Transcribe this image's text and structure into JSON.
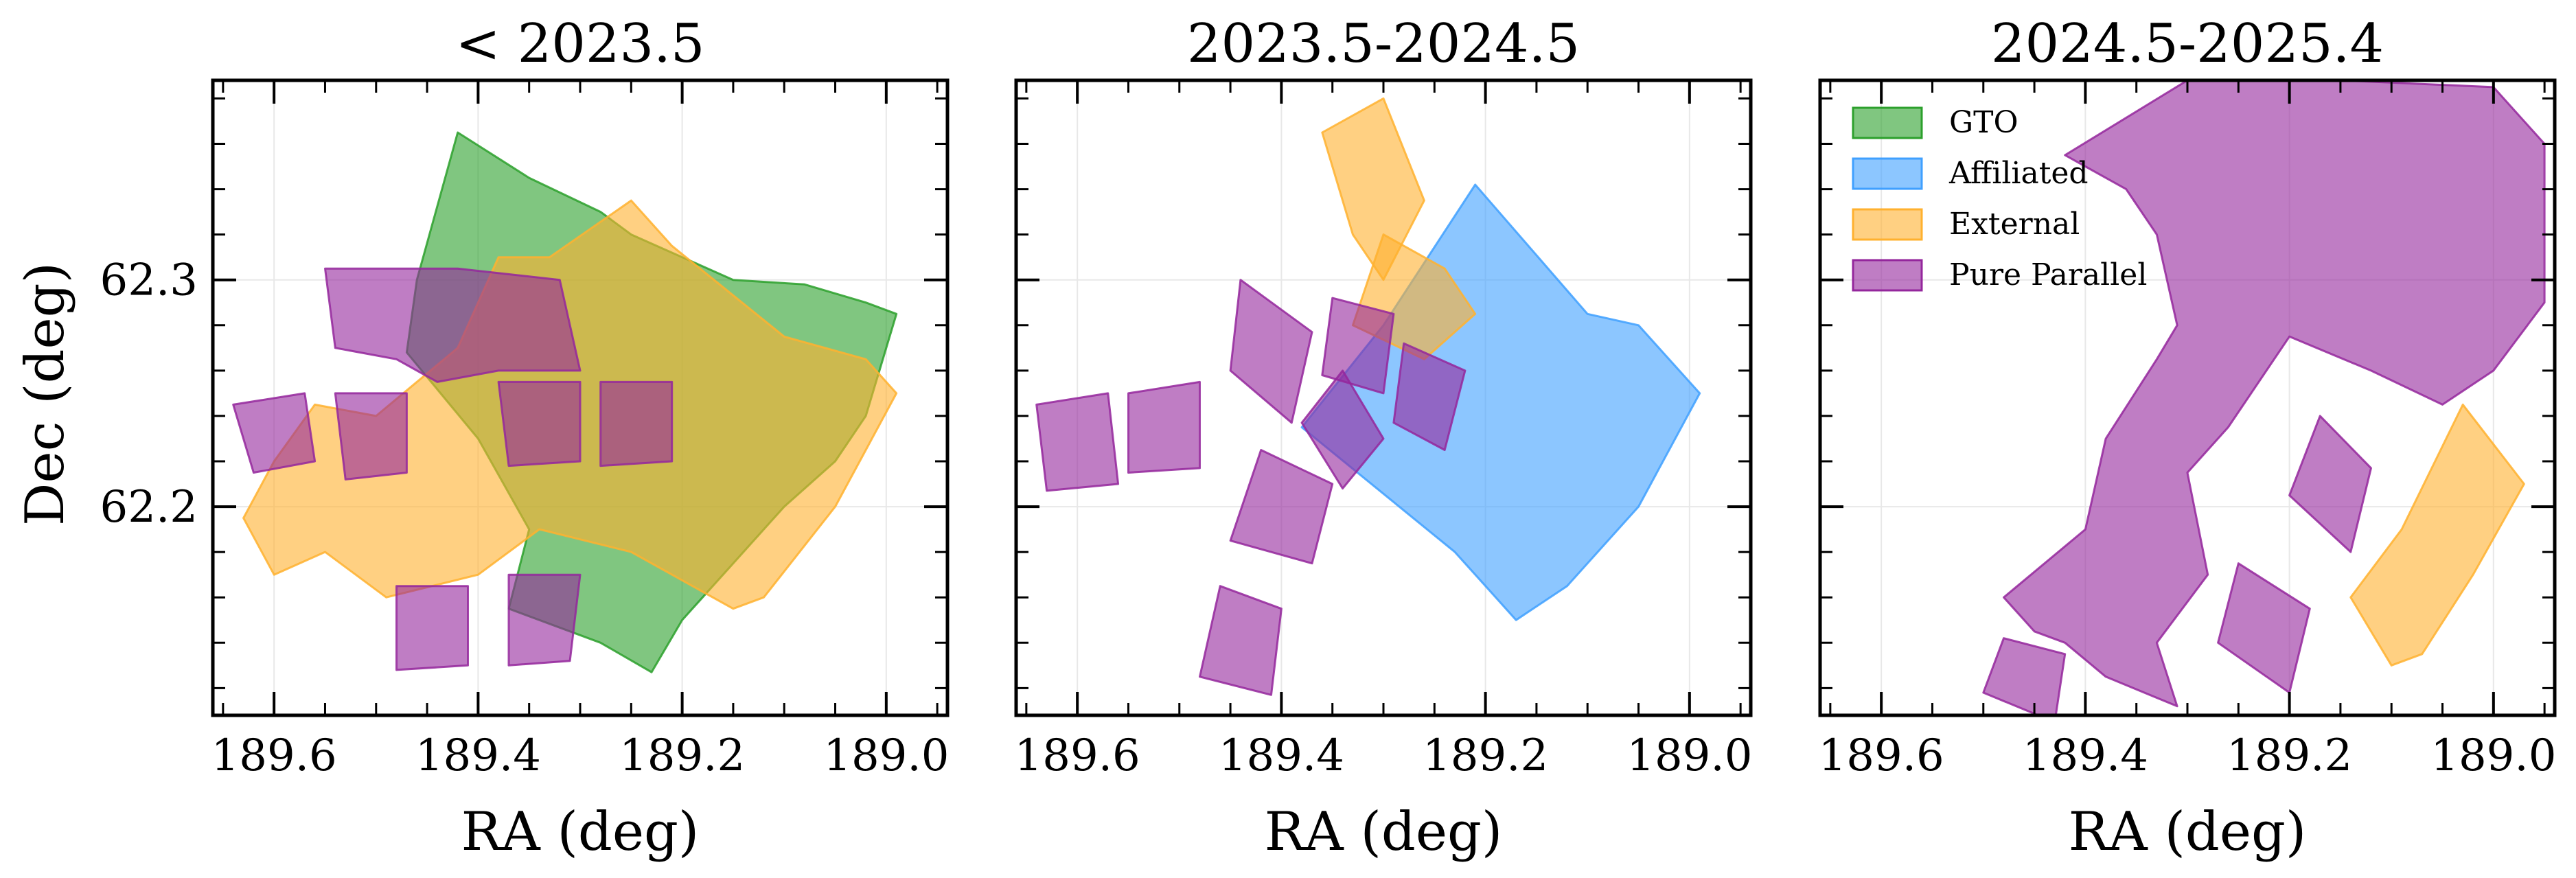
{
  "chart_data": {
    "type": "area",
    "figure_layout": "1x3 panels, shared Dec axis",
    "ylabel": "Dec (deg)",
    "xlabel": "RA (deg)",
    "xlim": [
      189.66,
      188.94
    ],
    "ylim": [
      62.108,
      62.388
    ],
    "xticks": [
      189.6,
      189.4,
      189.2,
      189.0
    ],
    "xtick_labels": [
      "189.6",
      "189.4",
      "189.2",
      "189.0"
    ],
    "yticks": [
      62.2,
      62.3
    ],
    "ytick_labels": [
      "62.2",
      "62.3"
    ],
    "grid": true,
    "legend": {
      "panel": 3,
      "location": "upper-left",
      "entries": [
        {
          "label": "GTO",
          "key": "gto"
        },
        {
          "label": "Affiliated",
          "key": "affiliated"
        },
        {
          "label": "External",
          "key": "external"
        },
        {
          "label": "Pure Parallel",
          "key": "pure_parallel"
        }
      ]
    },
    "categories": {
      "gto": {
        "fill": "#2ca02c",
        "edge": "#2ca02c",
        "alpha": 0.6
      },
      "affiliated": {
        "fill": "#40a0ff",
        "edge": "#40a0ff",
        "alpha": 0.6
      },
      "external": {
        "fill": "#ffb12f",
        "edge": "#ffb12f",
        "alpha": 0.6
      },
      "pure_parallel": {
        "fill": "#94279c",
        "edge": "#94279c",
        "alpha": 0.6
      }
    },
    "panels": [
      {
        "title": "< 2023.5",
        "polygons": [
          {
            "category": "gto",
            "points": [
              [
                189.46,
                62.3
              ],
              [
                189.42,
                62.365
              ],
              [
                189.35,
                62.345
              ],
              [
                189.28,
                62.33
              ],
              [
                189.25,
                62.32
              ],
              [
                189.15,
                62.3
              ],
              [
                189.08,
                62.298
              ],
              [
                189.02,
                62.29
              ],
              [
                188.99,
                62.285
              ],
              [
                189.02,
                62.24
              ],
              [
                189.05,
                62.22
              ],
              [
                189.1,
                62.2
              ],
              [
                189.15,
                62.175
              ],
              [
                189.2,
                62.15
              ],
              [
                189.23,
                62.127
              ],
              [
                189.28,
                62.14
              ],
              [
                189.37,
                62.155
              ],
              [
                189.35,
                62.19
              ],
              [
                189.4,
                62.23
              ],
              [
                189.47,
                62.268
              ]
            ]
          },
          {
            "category": "external",
            "points": [
              [
                189.5,
                62.24
              ],
              [
                189.42,
                62.27
              ],
              [
                189.38,
                62.31
              ],
              [
                189.33,
                62.31
              ],
              [
                189.25,
                62.335
              ],
              [
                189.21,
                62.315
              ],
              [
                189.1,
                62.275
              ],
              [
                189.02,
                62.265
              ],
              [
                188.99,
                62.25
              ],
              [
                189.05,
                62.2
              ],
              [
                189.12,
                62.16
              ],
              [
                189.15,
                62.155
              ],
              [
                189.25,
                62.18
              ],
              [
                189.34,
                62.19
              ],
              [
                189.4,
                62.17
              ],
              [
                189.49,
                62.16
              ],
              [
                189.55,
                62.18
              ],
              [
                189.6,
                62.17
              ],
              [
                189.63,
                62.195
              ],
              [
                189.6,
                62.22
              ],
              [
                189.56,
                62.245
              ]
            ]
          },
          {
            "category": "pure_parallel",
            "points": [
              [
                189.64,
                62.245
              ],
              [
                189.57,
                62.25
              ],
              [
                189.56,
                62.22
              ],
              [
                189.62,
                62.215
              ]
            ]
          },
          {
            "category": "pure_parallel",
            "points": [
              [
                189.54,
                62.25
              ],
              [
                189.47,
                62.25
              ],
              [
                189.47,
                62.215
              ],
              [
                189.53,
                62.212
              ]
            ]
          },
          {
            "category": "pure_parallel",
            "points": [
              [
                189.55,
                62.305
              ],
              [
                189.42,
                62.305
              ],
              [
                189.32,
                62.3
              ],
              [
                189.3,
                62.26
              ],
              [
                189.38,
                62.26
              ],
              [
                189.44,
                62.255
              ],
              [
                189.48,
                62.265
              ],
              [
                189.54,
                62.27
              ]
            ]
          },
          {
            "category": "pure_parallel",
            "points": [
              [
                189.38,
                62.255
              ],
              [
                189.3,
                62.255
              ],
              [
                189.3,
                62.22
              ],
              [
                189.37,
                62.218
              ]
            ]
          },
          {
            "category": "pure_parallel",
            "points": [
              [
                189.28,
                62.255
              ],
              [
                189.21,
                62.255
              ],
              [
                189.21,
                62.22
              ],
              [
                189.28,
                62.218
              ]
            ]
          },
          {
            "category": "pure_parallel",
            "points": [
              [
                189.48,
                62.165
              ],
              [
                189.41,
                62.165
              ],
              [
                189.41,
                62.13
              ],
              [
                189.48,
                62.128
              ]
            ]
          },
          {
            "category": "pure_parallel",
            "points": [
              [
                189.37,
                62.17
              ],
              [
                189.3,
                62.17
              ],
              [
                189.31,
                62.132
              ],
              [
                189.37,
                62.13
              ]
            ]
          }
        ]
      },
      {
        "title": "2023.5-2024.5",
        "polygons": [
          {
            "category": "affiliated",
            "points": [
              [
                189.21,
                62.342
              ],
              [
                189.1,
                62.285
              ],
              [
                189.05,
                62.28
              ],
              [
                188.99,
                62.25
              ],
              [
                189.05,
                62.2
              ],
              [
                189.12,
                62.165
              ],
              [
                189.17,
                62.15
              ],
              [
                189.23,
                62.18
              ],
              [
                189.38,
                62.235
              ],
              [
                189.3,
                62.28
              ]
            ]
          },
          {
            "category": "external",
            "points": [
              [
                189.36,
                62.365
              ],
              [
                189.3,
                62.38
              ],
              [
                189.26,
                62.335
              ],
              [
                189.3,
                62.3
              ],
              [
                189.33,
                62.32
              ]
            ]
          },
          {
            "category": "external",
            "points": [
              [
                189.33,
                62.28
              ],
              [
                189.3,
                62.32
              ],
              [
                189.24,
                62.305
              ],
              [
                189.21,
                62.285
              ],
              [
                189.26,
                62.265
              ]
            ]
          },
          {
            "category": "pure_parallel",
            "points": [
              [
                189.64,
                62.245
              ],
              [
                189.57,
                62.25
              ],
              [
                189.56,
                62.21
              ],
              [
                189.63,
                62.207
              ]
            ]
          },
          {
            "category": "pure_parallel",
            "points": [
              [
                189.55,
                62.25
              ],
              [
                189.48,
                62.255
              ],
              [
                189.48,
                62.217
              ],
              [
                189.55,
                62.215
              ]
            ]
          },
          {
            "category": "pure_parallel",
            "points": [
              [
                189.44,
                62.3
              ],
              [
                189.37,
                62.277
              ],
              [
                189.39,
                62.237
              ],
              [
                189.45,
                62.26
              ]
            ]
          },
          {
            "category": "pure_parallel",
            "points": [
              [
                189.35,
                62.292
              ],
              [
                189.29,
                62.285
              ],
              [
                189.3,
                62.25
              ],
              [
                189.36,
                62.258
              ]
            ]
          },
          {
            "category": "pure_parallel",
            "points": [
              [
                189.34,
                62.26
              ],
              [
                189.38,
                62.237
              ],
              [
                189.34,
                62.208
              ],
              [
                189.3,
                62.23
              ]
            ]
          },
          {
            "category": "pure_parallel",
            "points": [
              [
                189.28,
                62.272
              ],
              [
                189.22,
                62.26
              ],
              [
                189.24,
                62.225
              ],
              [
                189.29,
                62.237
              ]
            ]
          },
          {
            "category": "pure_parallel",
            "points": [
              [
                189.42,
                62.225
              ],
              [
                189.35,
                62.21
              ],
              [
                189.37,
                62.175
              ],
              [
                189.45,
                62.185
              ]
            ]
          },
          {
            "category": "pure_parallel",
            "points": [
              [
                189.46,
                62.165
              ],
              [
                189.4,
                62.155
              ],
              [
                189.41,
                62.117
              ],
              [
                189.48,
                62.125
              ]
            ]
          }
        ]
      },
      {
        "title": "2024.5-2025.4",
        "polygons": [
          {
            "category": "pure_parallel",
            "points": [
              [
                189.3,
                62.388
              ],
              [
                189.15,
                62.388
              ],
              [
                189.0,
                62.385
              ],
              [
                188.95,
                62.36
              ],
              [
                188.95,
                62.29
              ],
              [
                189.0,
                62.26
              ],
              [
                189.05,
                62.245
              ],
              [
                189.12,
                62.26
              ],
              [
                189.2,
                62.275
              ],
              [
                189.26,
                62.235
              ],
              [
                189.3,
                62.215
              ],
              [
                189.28,
                62.17
              ],
              [
                189.33,
                62.14
              ],
              [
                189.31,
                62.112
              ],
              [
                189.38,
                62.125
              ],
              [
                189.42,
                62.14
              ],
              [
                189.45,
                62.145
              ],
              [
                189.48,
                62.16
              ],
              [
                189.4,
                62.19
              ],
              [
                189.38,
                62.23
              ],
              [
                189.33,
                62.265
              ],
              [
                189.31,
                62.28
              ],
              [
                189.33,
                62.32
              ],
              [
                189.36,
                62.34
              ],
              [
                189.42,
                62.355
              ]
            ]
          },
          {
            "category": "pure_parallel",
            "points": [
              [
                189.17,
                62.24
              ],
              [
                189.12,
                62.217
              ],
              [
                189.14,
                62.18
              ],
              [
                189.2,
                62.205
              ]
            ]
          },
          {
            "category": "pure_parallel",
            "points": [
              [
                189.25,
                62.175
              ],
              [
                189.18,
                62.155
              ],
              [
                189.2,
                62.118
              ],
              [
                189.27,
                62.14
              ]
            ]
          },
          {
            "category": "pure_parallel",
            "points": [
              [
                189.48,
                62.142
              ],
              [
                189.42,
                62.135
              ],
              [
                189.43,
                62.105
              ],
              [
                189.5,
                62.118
              ]
            ]
          },
          {
            "category": "external",
            "points": [
              [
                189.03,
                62.245
              ],
              [
                188.97,
                62.21
              ],
              [
                189.02,
                62.17
              ],
              [
                189.07,
                62.135
              ],
              [
                189.1,
                62.13
              ],
              [
                189.14,
                62.16
              ],
              [
                189.09,
                62.19
              ]
            ]
          }
        ]
      }
    ]
  }
}
